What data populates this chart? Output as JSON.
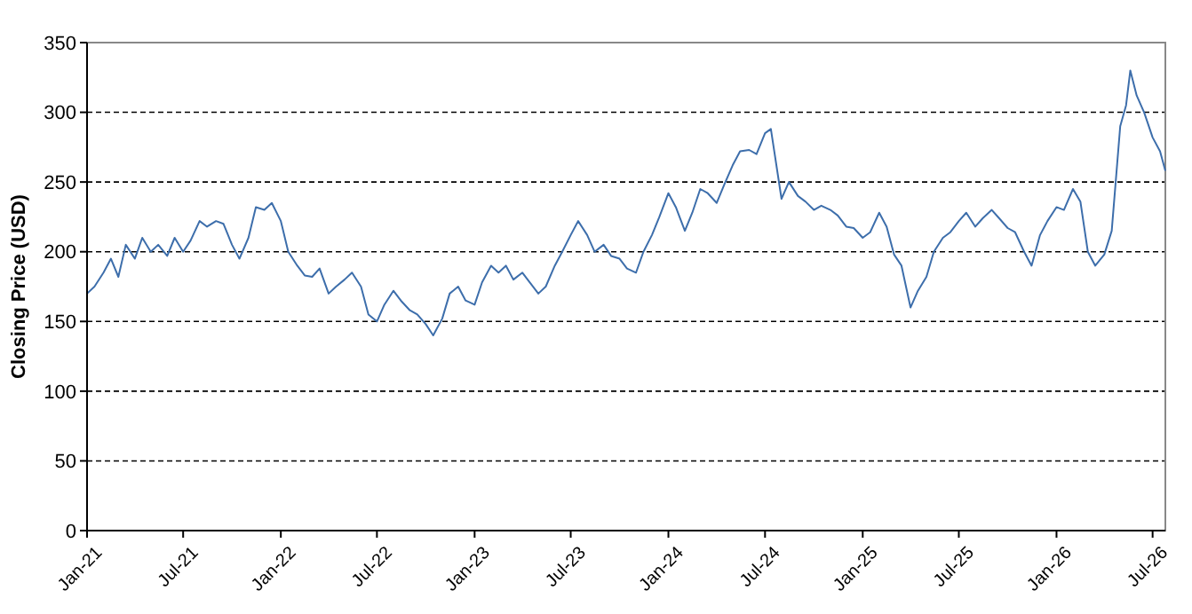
{
  "chart_data": {
    "type": "line",
    "ylabel": "Closing Price (USD)",
    "grid": "y",
    "line_style": "solid",
    "marker": "none",
    "xlim": [
      "2021-01-01",
      "2026-07-25"
    ],
    "xticks": [
      {
        "value": "2021-01-01",
        "label": "Jan-21"
      },
      {
        "value": "2021-07-01",
        "label": "Jul-21"
      },
      {
        "value": "2022-01-01",
        "label": "Jan-22"
      },
      {
        "value": "2022-07-01",
        "label": "Jul-22"
      },
      {
        "value": "2023-01-01",
        "label": "Jan-23"
      },
      {
        "value": "2023-07-01",
        "label": "Jul-23"
      },
      {
        "value": "2024-01-01",
        "label": "Jan-24"
      },
      {
        "value": "2024-07-01",
        "label": "Jul-24"
      },
      {
        "value": "2025-01-01",
        "label": "Jan-25"
      },
      {
        "value": "2025-07-01",
        "label": "Jul-25"
      },
      {
        "value": "2026-01-01",
        "label": "Jan-26"
      },
      {
        "value": "2026-07-01",
        "label": "Jul-26"
      }
    ],
    "ylim": [
      0,
      350
    ],
    "yticks": [
      0,
      50,
      100,
      150,
      200,
      250,
      300,
      350
    ],
    "x": [
      "2021-01-01",
      "2021-01-15",
      "2021-02-01",
      "2021-02-15",
      "2021-03-01",
      "2021-03-15",
      "2021-04-01",
      "2021-04-15",
      "2021-05-01",
      "2021-05-15",
      "2021-06-01",
      "2021-06-15",
      "2021-07-01",
      "2021-07-15",
      "2021-08-01",
      "2021-08-15",
      "2021-09-01",
      "2021-09-15",
      "2021-10-01",
      "2021-10-15",
      "2021-11-01",
      "2021-11-15",
      "2021-12-01",
      "2021-12-15",
      "2022-01-01",
      "2022-01-15",
      "2022-02-01",
      "2022-02-15",
      "2022-03-01",
      "2022-03-15",
      "2022-04-01",
      "2022-04-15",
      "2022-05-01",
      "2022-05-15",
      "2022-06-01",
      "2022-06-15",
      "2022-07-01",
      "2022-07-15",
      "2022-08-01",
      "2022-08-15",
      "2022-09-01",
      "2022-09-15",
      "2022-10-01",
      "2022-10-15",
      "2022-11-01",
      "2022-11-15",
      "2022-12-01",
      "2022-12-15",
      "2023-01-01",
      "2023-01-15",
      "2023-02-01",
      "2023-02-15",
      "2023-03-01",
      "2023-03-15",
      "2023-04-01",
      "2023-04-15",
      "2023-05-01",
      "2023-05-15",
      "2023-06-01",
      "2023-06-15",
      "2023-07-01",
      "2023-07-15",
      "2023-08-01",
      "2023-08-15",
      "2023-09-01",
      "2023-09-15",
      "2023-10-01",
      "2023-10-15",
      "2023-11-01",
      "2023-11-15",
      "2023-12-01",
      "2023-12-15",
      "2024-01-01",
      "2024-01-15",
      "2024-02-01",
      "2024-02-15",
      "2024-03-01",
      "2024-03-15",
      "2024-04-01",
      "2024-04-15",
      "2024-05-01",
      "2024-05-15",
      "2024-06-01",
      "2024-06-15",
      "2024-07-01",
      "2024-07-12",
      "2024-08-01",
      "2024-08-15",
      "2024-09-01",
      "2024-09-15",
      "2024-10-01",
      "2024-10-15",
      "2024-11-01",
      "2024-11-15",
      "2024-12-01",
      "2024-12-15",
      "2025-01-01",
      "2025-01-15",
      "2025-02-01",
      "2025-02-15",
      "2025-03-01",
      "2025-03-15",
      "2025-04-01",
      "2025-04-15",
      "2025-05-01",
      "2025-05-15",
      "2025-06-01",
      "2025-06-15",
      "2025-07-01",
      "2025-07-15",
      "2025-08-01",
      "2025-08-15",
      "2025-09-01",
      "2025-09-15",
      "2025-10-01",
      "2025-10-15",
      "2025-11-01",
      "2025-11-15",
      "2025-12-01",
      "2025-12-15",
      "2026-01-01",
      "2026-01-15",
      "2026-02-01",
      "2026-02-15",
      "2026-03-01",
      "2026-03-15",
      "2026-04-01",
      "2026-04-15",
      "2026-05-01",
      "2026-05-12",
      "2026-05-20",
      "2026-06-01",
      "2026-06-15",
      "2026-07-01",
      "2026-07-15",
      "2026-07-25"
    ],
    "series": [
      {
        "color": "#3d6eab",
        "values": [
          170,
          175,
          185,
          195,
          182,
          205,
          195,
          210,
          200,
          205,
          197,
          210,
          200,
          208,
          222,
          218,
          222,
          220,
          205,
          195,
          210,
          232,
          230,
          235,
          222,
          200,
          190,
          183,
          182,
          188,
          170,
          175,
          180,
          185,
          175,
          155,
          150,
          162,
          172,
          165,
          158,
          155,
          148,
          140,
          152,
          170,
          175,
          165,
          162,
          178,
          190,
          185,
          190,
          180,
          185,
          178,
          170,
          175,
          190,
          200,
          212,
          222,
          212,
          200,
          205,
          197,
          195,
          188,
          185,
          200,
          212,
          225,
          242,
          232,
          215,
          228,
          245,
          242,
          235,
          248,
          262,
          272,
          273,
          270,
          285,
          288,
          238,
          250,
          240,
          236,
          230,
          233,
          230,
          226,
          218,
          217,
          210,
          214,
          228,
          218,
          198,
          190,
          160,
          172,
          182,
          200,
          210,
          214,
          222,
          228,
          218,
          224,
          230,
          224,
          217,
          214,
          200,
          190,
          212,
          222,
          232,
          230,
          245,
          236,
          200,
          190,
          198,
          215,
          290,
          305,
          330,
          312,
          300,
          282,
          272,
          258
        ]
      }
    ]
  }
}
